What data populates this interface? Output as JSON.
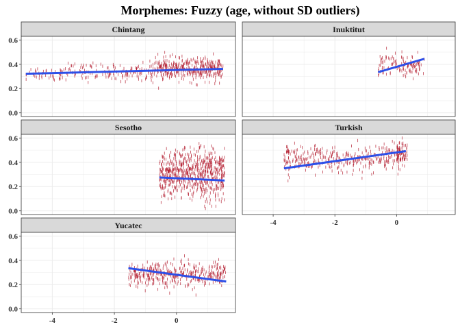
{
  "chart_data": {
    "type": "scatter",
    "title": "Morphemes: Fuzzy (age, without SD outliers)",
    "xlabel": "",
    "ylabel": "",
    "xlim": [
      -5.0,
      1.9
    ],
    "ylim": [
      -0.03,
      0.63
    ],
    "x_ticks": [
      -4,
      -2,
      0
    ],
    "y_ticks": [
      0.0,
      0.2,
      0.4,
      0.6
    ],
    "x_tick_labels": [
      "-4",
      "-2",
      "0"
    ],
    "y_tick_labels": [
      "0.0",
      "0.2",
      "0.4",
      "0.6"
    ],
    "grid": true,
    "point_color": "#b2182b",
    "line_color": "#2c4fe8",
    "facets": [
      {
        "name": "Chintang",
        "fit": {
          "x": [
            -4.85,
            1.5
          ],
          "y": [
            0.322,
            0.362
          ]
        },
        "clouds": [
          {
            "x": [
              -4.85,
              -3.5
            ],
            "y": [
              0.325,
              0.03
            ],
            "n": 50
          },
          {
            "x": [
              -3.5,
              -1.6
            ],
            "y": [
              0.335,
              0.035
            ],
            "n": 90
          },
          {
            "x": [
              -1.6,
              -0.6
            ],
            "y": [
              0.34,
              0.04
            ],
            "n": 70
          },
          {
            "x": [
              -0.6,
              1.5
            ],
            "y": [
              0.36,
              0.045
            ],
            "n": 380
          }
        ]
      },
      {
        "name": "Inuktitut",
        "fit": {
          "x": [
            -0.6,
            0.9
          ],
          "y": [
            0.335,
            0.445
          ]
        },
        "clouds": [
          {
            "x": [
              -0.6,
              0.9
            ],
            "y": [
              0.39,
              0.045
            ],
            "n": 130
          }
        ]
      },
      {
        "name": "Sesotho",
        "fit": {
          "x": [
            -0.55,
            1.55
          ],
          "y": [
            0.275,
            0.25
          ]
        },
        "clouds": [
          {
            "x": [
              -0.55,
              1.55
            ],
            "y": [
              0.3,
              0.1
            ],
            "n": 700
          }
        ]
      },
      {
        "name": "Turkish",
        "fit": {
          "x": [
            -3.65,
            0.3
          ],
          "y": [
            0.35,
            0.492
          ]
        },
        "clouds": [
          {
            "x": [
              -3.65,
              0.3
            ],
            "y": [
              0.43,
              0.055
            ],
            "n": 380
          },
          {
            "x": [
              0.0,
              0.35
            ],
            "y": [
              0.48,
              0.05
            ],
            "n": 60
          }
        ]
      },
      {
        "name": "Yucatec",
        "fit": {
          "x": [
            -1.55,
            1.6
          ],
          "y": [
            0.335,
            0.225
          ]
        },
        "clouds": [
          {
            "x": [
              -1.55,
              1.6
            ],
            "y": [
              0.28,
              0.05
            ],
            "n": 420
          }
        ]
      }
    ]
  }
}
